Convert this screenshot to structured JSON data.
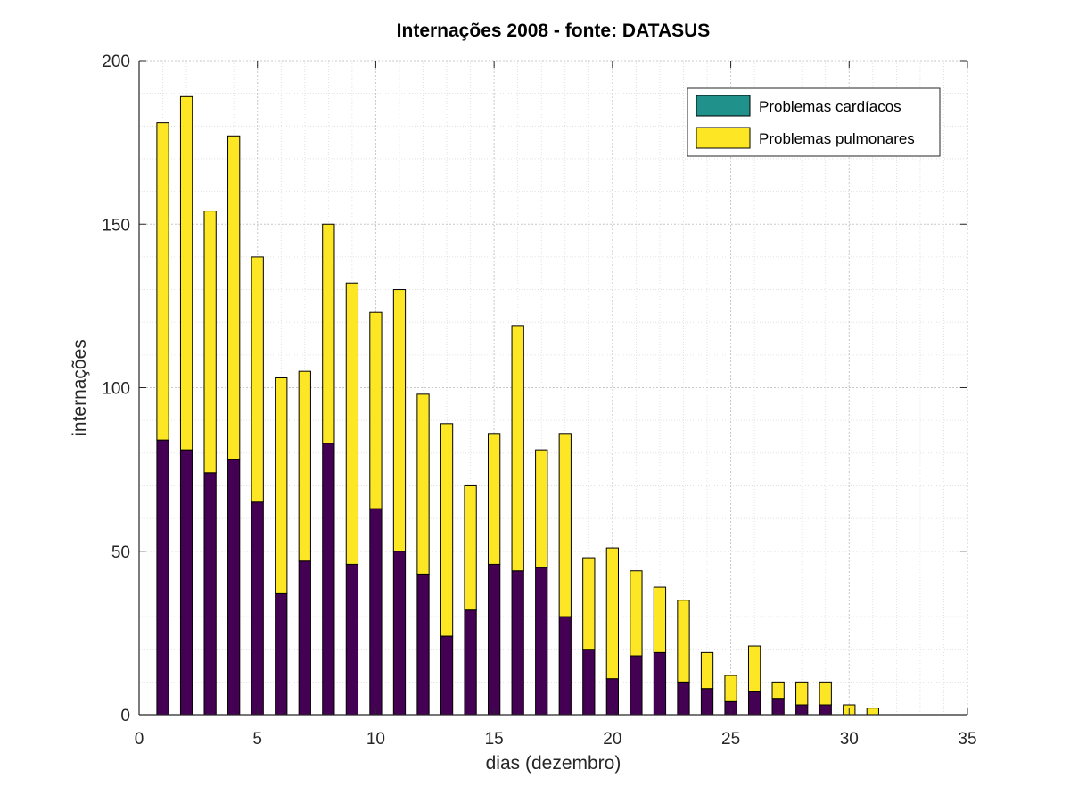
{
  "chart_data": {
    "type": "bar",
    "stacked": true,
    "title": "Internações 2008 - fonte: DATASUS",
    "xlabel": "dias (dezembro)",
    "ylabel": "internações",
    "xlim": [
      0,
      35
    ],
    "ylim": [
      0,
      200
    ],
    "xticks": [
      0,
      5,
      10,
      15,
      20,
      25,
      30,
      35
    ],
    "yticks": [
      0,
      50,
      100,
      150,
      200
    ],
    "grid": true,
    "minor_grid": true,
    "legend_position": "top-right",
    "x": [
      1,
      2,
      3,
      4,
      5,
      6,
      7,
      8,
      9,
      10,
      11,
      12,
      13,
      14,
      15,
      16,
      17,
      18,
      19,
      20,
      21,
      22,
      23,
      24,
      25,
      26,
      27,
      28,
      29,
      30,
      31
    ],
    "series": [
      {
        "name": "Problemas cardíacos",
        "legend_color": "#21918c",
        "bar_color": "#440154",
        "values": [
          84,
          81,
          74,
          78,
          65,
          37,
          47,
          83,
          46,
          63,
          50,
          43,
          24,
          32,
          46,
          44,
          45,
          30,
          20,
          11,
          18,
          19,
          10,
          8,
          4,
          7,
          5,
          3,
          3,
          0,
          0
        ]
      },
      {
        "name": "Problemas pulmonares",
        "legend_color": "#fde725",
        "bar_color": "#fde725",
        "values": [
          97,
          108,
          80,
          99,
          75,
          66,
          58,
          67,
          86,
          60,
          80,
          55,
          65,
          38,
          40,
          75,
          36,
          56,
          28,
          40,
          26,
          20,
          25,
          11,
          8,
          14,
          5,
          7,
          7,
          3,
          2
        ]
      }
    ]
  }
}
